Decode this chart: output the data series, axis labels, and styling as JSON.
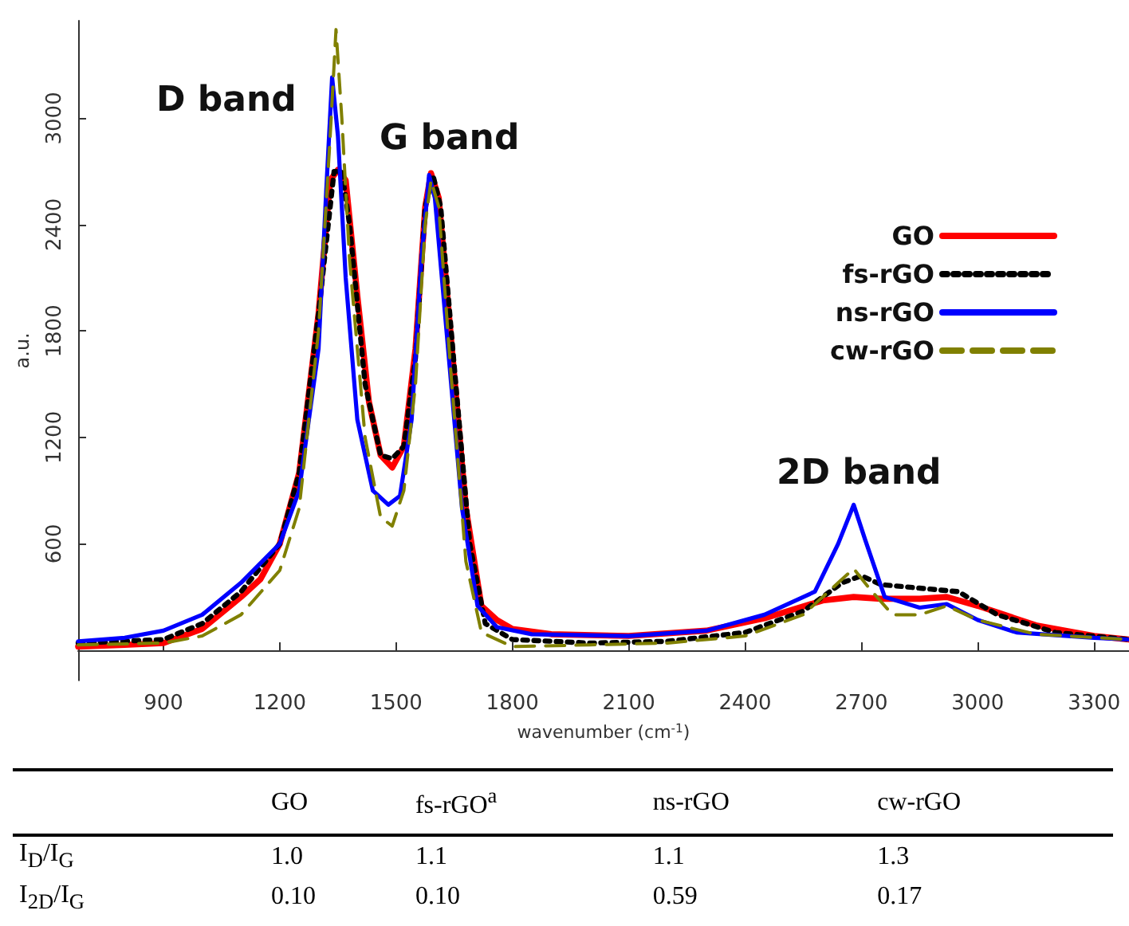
{
  "chart_data": [
    {
      "type": "line",
      "xlabel": "wavenumber (cm$^{-1}$)",
      "ylabel": "a.u.",
      "xlim": [
        680,
        3390
      ],
      "ylim": [
        -170,
        3550
      ],
      "xticks": [
        900,
        1200,
        1500,
        1800,
        2100,
        2400,
        2700,
        3000,
        3300
      ],
      "yticks": [
        600,
        1200,
        1800,
        2400,
        3000
      ],
      "grid": false,
      "legend": "top right",
      "marker": "none",
      "annotations": [
        "D band",
        "G band",
        "2D band"
      ],
      "series": [
        {
          "name": "GO",
          "color": "#ff0000",
          "line_style": "solid",
          "x": [
            680,
            800,
            900,
            1000,
            1100,
            1150,
            1200,
            1250,
            1300,
            1330,
            1350,
            1370,
            1400,
            1430,
            1460,
            1490,
            1520,
            1550,
            1575,
            1590,
            1610,
            1640,
            1680,
            1720,
            1760,
            1800,
            1900,
            2100,
            2300,
            2450,
            2600,
            2680,
            2750,
            2850,
            2920,
            3000,
            3150,
            3300,
            3390
          ],
          "values": [
            20,
            30,
            40,
            120,
            300,
            400,
            600,
            1000,
            1900,
            2650,
            2710,
            2650,
            2000,
            1400,
            1100,
            1030,
            1150,
            1700,
            2500,
            2690,
            2550,
            1800,
            800,
            250,
            170,
            120,
            90,
            80,
            110,
            180,
            280,
            300,
            290,
            290,
            300,
            250,
            140,
            80,
            60
          ]
        },
        {
          "name": "fs-rGO",
          "color": "#000000",
          "line_style": "dotted",
          "x": [
            680,
            900,
            1000,
            1100,
            1200,
            1250,
            1300,
            1340,
            1360,
            1380,
            1420,
            1460,
            1490,
            1520,
            1550,
            1575,
            1595,
            1615,
            1650,
            1690,
            1730,
            1800,
            2000,
            2200,
            2400,
            2550,
            2650,
            2700,
            2750,
            2850,
            2950,
            3050,
            3200,
            3390
          ],
          "values": [
            40,
            60,
            150,
            330,
            600,
            1000,
            1900,
            2700,
            2700,
            2400,
            1500,
            1100,
            1080,
            1150,
            1650,
            2500,
            2680,
            2500,
            1600,
            600,
            150,
            60,
            40,
            50,
            100,
            220,
            380,
            420,
            370,
            350,
            330,
            200,
            100,
            60
          ]
        },
        {
          "name": "ns-rGO",
          "color": "#0000ff",
          "line_style": "solid",
          "x": [
            680,
            800,
            900,
            1000,
            1100,
            1200,
            1250,
            1300,
            1320,
            1335,
            1350,
            1370,
            1400,
            1440,
            1480,
            1510,
            1540,
            1565,
            1585,
            1600,
            1630,
            1670,
            1710,
            1760,
            1850,
            2100,
            2300,
            2450,
            2580,
            2640,
            2680,
            2710,
            2760,
            2850,
            2920,
            3000,
            3100,
            3300,
            3390
          ],
          "values": [
            50,
            70,
            110,
            200,
            380,
            600,
            900,
            1700,
            2600,
            3230,
            2900,
            2100,
            1300,
            900,
            820,
            870,
            1300,
            2200,
            2680,
            2550,
            1800,
            800,
            250,
            130,
            90,
            80,
            110,
            200,
            330,
            600,
            820,
            620,
            300,
            240,
            260,
            170,
            100,
            70,
            60
          ]
        },
        {
          "name": "cw-rGO",
          "color": "#808000",
          "line_style": "dashed",
          "x": [
            680,
            900,
            1000,
            1100,
            1200,
            1250,
            1300,
            1330,
            1345,
            1360,
            1380,
            1420,
            1460,
            1490,
            1520,
            1550,
            1575,
            1590,
            1610,
            1640,
            1680,
            1720,
            1800,
            2000,
            2200,
            2400,
            2550,
            2640,
            2680,
            2720,
            2780,
            2850,
            2920,
            3000,
            3150,
            3390
          ],
          "values": [
            30,
            40,
            80,
            200,
            450,
            800,
            1800,
            2900,
            3500,
            3000,
            2200,
            1200,
            750,
            700,
            900,
            1500,
            2400,
            2650,
            2500,
            1600,
            500,
            100,
            20,
            30,
            40,
            80,
            200,
            380,
            460,
            350,
            200,
            200,
            250,
            170,
            90,
            60
          ]
        }
      ]
    },
    {
      "type": "other",
      "categories": [
        "GO",
        "fs-rGO$^{a}$",
        "ns-rGO",
        "cw-rGO"
      ],
      "y_categories": [
        "I$_{D}$/I$_{G}$",
        "I$_{2D}$/I$_{G}$"
      ],
      "cell_labels": [
        [
          "1.0",
          "1.1",
          "1.1",
          "1.3"
        ],
        [
          "0.10",
          "0.10",
          "0.59",
          "0.17"
        ]
      ]
    }
  ]
}
